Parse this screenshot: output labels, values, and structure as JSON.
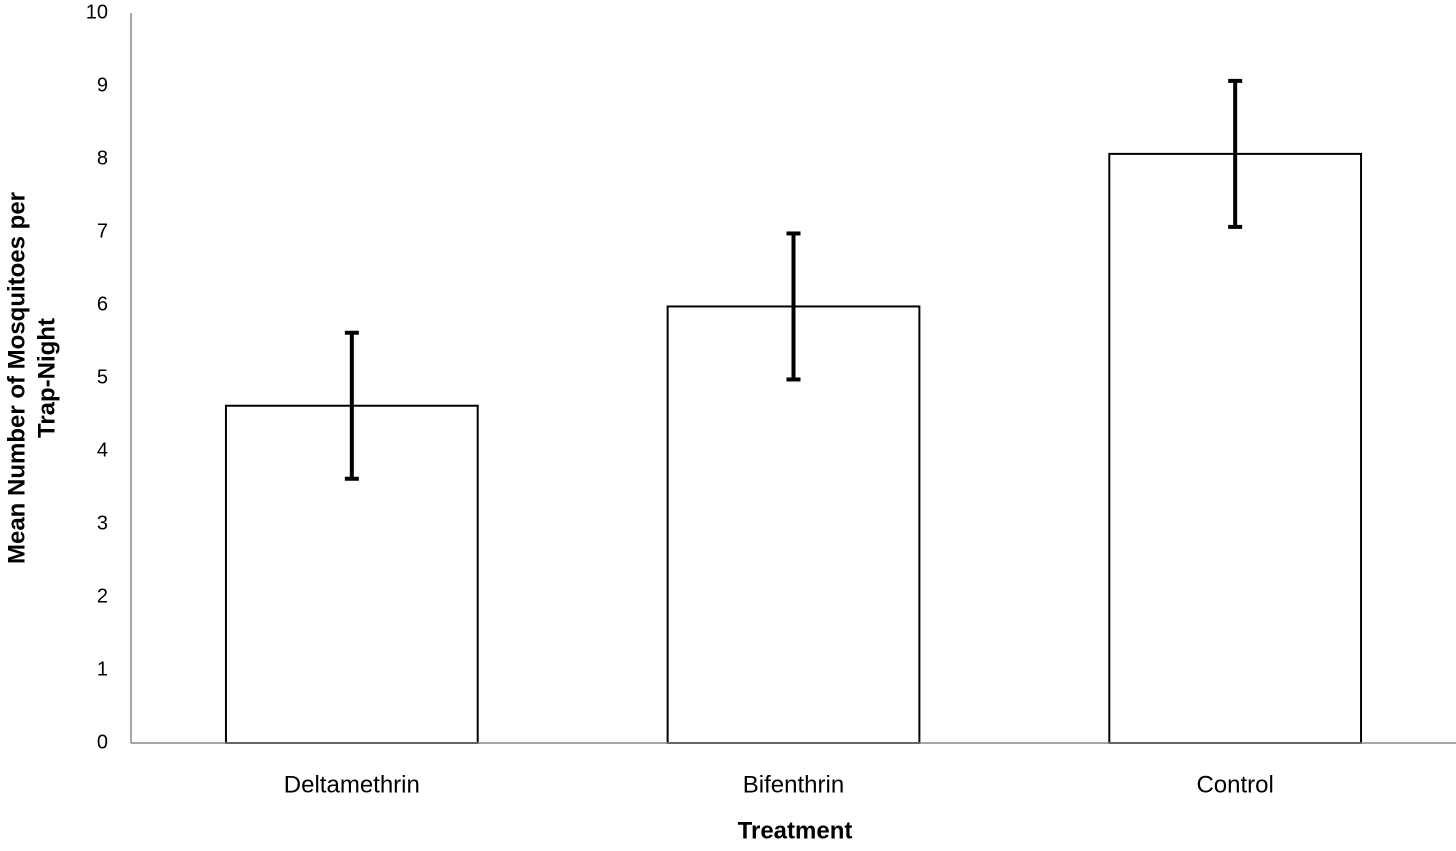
{
  "chart_data": {
    "type": "bar",
    "categories": [
      "Deltamethrin",
      "Bifenthrin",
      "Control"
    ],
    "values": [
      4.62,
      5.98,
      8.07
    ],
    "errors": [
      1.0,
      1.0,
      1.0
    ],
    "color": "#ffffff",
    "edge_color": "#000000",
    "xlabel": "Treatment",
    "ylabel": [
      "Mean Number of Mosquitoes per",
      "Trap-Night"
    ],
    "ylim": [
      0,
      10
    ],
    "yticks": [
      0,
      1,
      2,
      3,
      4,
      5,
      6,
      7,
      8,
      9,
      10
    ],
    "grid": false
  }
}
